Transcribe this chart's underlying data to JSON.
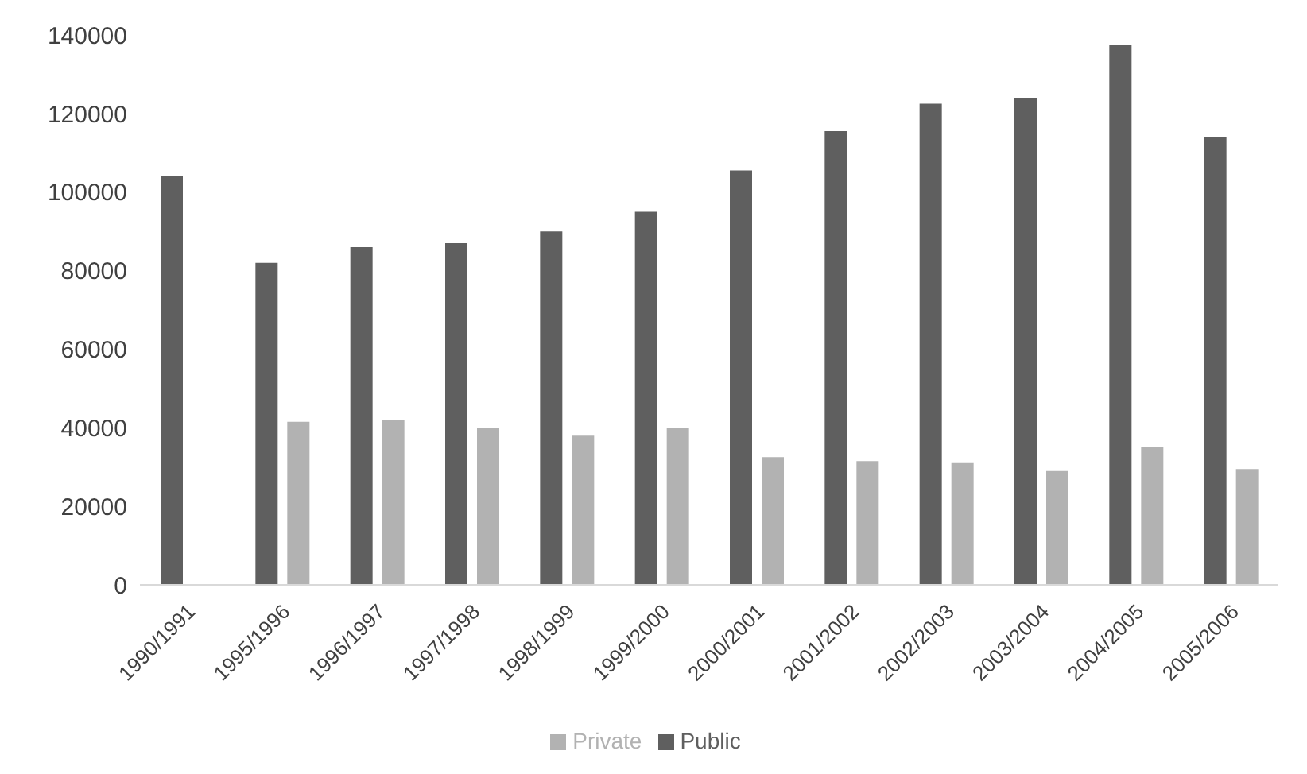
{
  "chart_data": {
    "type": "bar",
    "categories": [
      "1990/1991",
      "1995/1996",
      "1996/1997",
      "1997/1998",
      "1998/1999",
      "1999/2000",
      "2000/2001",
      "2001/2002",
      "2002/2003",
      "2003/2004",
      "2004/2005",
      "2005/2006"
    ],
    "series": [
      {
        "name": "Public",
        "color": "#5f5f5f",
        "values": [
          104000,
          82000,
          86000,
          87000,
          90000,
          95000,
          105500,
          115500,
          122500,
          124000,
          137500,
          114000
        ]
      },
      {
        "name": "Private",
        "color": "#b2b2b2",
        "values": [
          null,
          41500,
          42000,
          40000,
          38000,
          40000,
          32500,
          31500,
          31000,
          29000,
          35000,
          29500
        ]
      }
    ],
    "ylim": [
      0,
      140000
    ],
    "yticks": [
      0,
      20000,
      40000,
      60000,
      80000,
      100000,
      120000,
      140000
    ],
    "grid": false,
    "legend": "bottom"
  }
}
